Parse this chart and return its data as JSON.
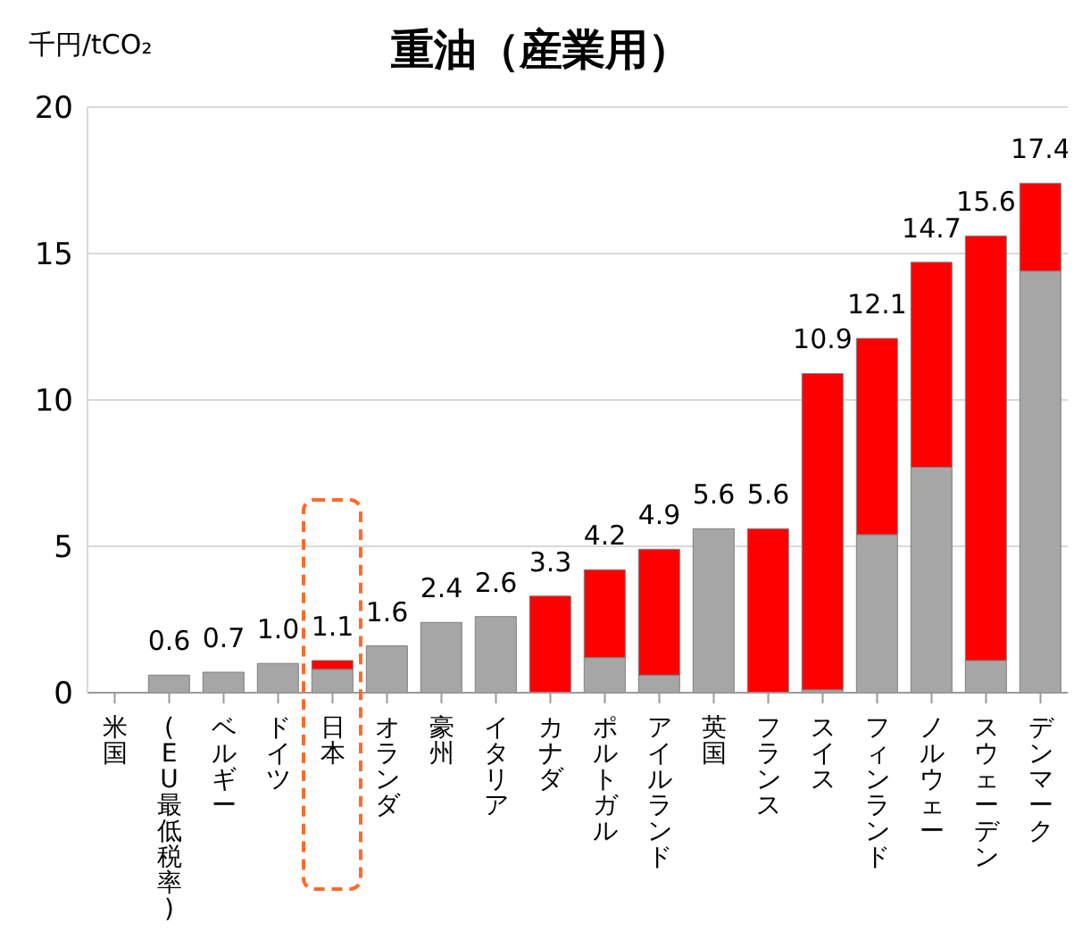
{
  "chart_data": {
    "type": "bar",
    "title": "重油（産業用）",
    "ylabel": "千円/tCO₂",
    "categories": [
      "米国",
      "(EU最低税率)",
      "ベルギー",
      "ドイツ",
      "日本",
      "オランダ",
      "豪州",
      "イタリア",
      "カナダ",
      "ポルトガル",
      "アイルランド",
      "英国",
      "フランス",
      "スイス",
      "フィンランド",
      "ノルウェー",
      "スウェーデン",
      "デンマーク"
    ],
    "series": [
      {
        "color": "#a6a6a6",
        "values": [
          null,
          0.6,
          0.7,
          1.0,
          0.8,
          1.6,
          2.4,
          2.6,
          0,
          1.2,
          0.6,
          5.6,
          0,
          0.1,
          5.4,
          7.7,
          1.1,
          14.4
        ]
      },
      {
        "color": "#ff0000",
        "values": [
          null,
          0,
          0,
          0,
          0.3,
          0,
          0,
          0,
          3.3,
          3.0,
          4.3,
          0,
          5.6,
          10.8,
          6.7,
          7.0,
          14.5,
          3.0
        ]
      }
    ],
    "stacked": true,
    "totals": [
      null,
      "0.6",
      "0.7",
      "1.0",
      "1.1",
      "1.6",
      "2.4",
      "2.6",
      "3.3",
      "4.2",
      "4.9",
      "5.6",
      "5.6",
      "10.9",
      "12.1",
      "14.7",
      "15.6",
      "17.4"
    ],
    "ylim": [
      0,
      20
    ],
    "yticks": [
      0,
      5,
      10,
      15,
      20
    ],
    "grid": "y",
    "legend": false
  }
}
